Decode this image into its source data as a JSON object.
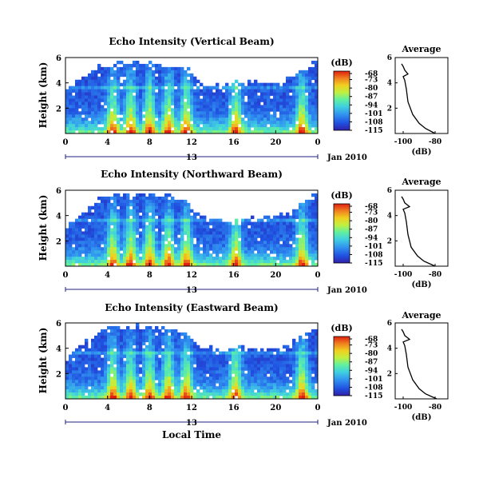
{
  "figure": {
    "colorbar_unit": "(dB)",
    "colorbar_ticks": [
      "-68",
      "-73",
      "-80",
      "-87",
      "-94",
      "-101",
      "-108",
      "-115"
    ],
    "colorbar_range": [
      -115,
      -66
    ],
    "colorscale": [
      "#3020a8",
      "#2050e0",
      "#3090f0",
      "#40d0e0",
      "#60f0a0",
      "#c0f040",
      "#f0d020",
      "#f08020",
      "#e02010"
    ],
    "x_ticks": [
      "0",
      "4",
      "8",
      "12",
      "16",
      "20",
      "0"
    ],
    "date_marker": "13",
    "date_label": "Jan 2010",
    "y_ticks": [
      "6",
      "4",
      "2"
    ],
    "ylabel": "Height (km)",
    "xlabel": "Local Time",
    "avg_title": "Average",
    "avg_xticks": [
      "-100",
      "-80"
    ],
    "avg_yticks": [
      "6",
      "4",
      "2"
    ],
    "avg_xlabel": "(dB)"
  },
  "chart_data": [
    {
      "type": "heatmap",
      "title": "Echo Intensity (Vertical Beam)",
      "x_range_hours": [
        0,
        24
      ],
      "y_range_km": [
        0,
        6
      ],
      "z_unit": "dB",
      "z_range": [
        -115,
        -66
      ],
      "surges_hour": [
        4.5,
        6.2,
        8.0,
        9.8,
        11.5,
        16.2,
        22.5
      ],
      "top_height_km": [
        3.5,
        5.3,
        5.5,
        5.6,
        5.5,
        5.2,
        4.0,
        3.8,
        4.0,
        4.0,
        4.2,
        5.8
      ],
      "top_height_hours": [
        0,
        3.5,
        5,
        7,
        9,
        11.5,
        12.5,
        15,
        17,
        19,
        21,
        24
      ]
    },
    {
      "type": "line",
      "title": "Average",
      "xlabel": "(dB)",
      "xlim": [
        -105,
        -72
      ],
      "ylim": [
        0,
        6
      ],
      "x": [
        -80,
        -86,
        -90,
        -94,
        -97,
        -98,
        -99,
        -100,
        -97,
        -99,
        -100,
        -101
      ],
      "y": [
        0,
        0.4,
        0.8,
        1.5,
        2.5,
        3.5,
        4.2,
        4.5,
        4.7,
        5.0,
        5.3,
        5.5
      ]
    },
    {
      "type": "heatmap",
      "title": "Echo Intensity (Northward Beam)",
      "x_range_hours": [
        0,
        24
      ],
      "y_range_km": [
        0,
        6
      ],
      "z_unit": "dB",
      "z_range": [
        -115,
        -66
      ],
      "surges_hour": [
        4.5,
        6.2,
        8.0,
        9.8,
        11.5,
        16.2,
        22.5
      ],
      "top_height_km": [
        3.0,
        5.5,
        5.6,
        5.7,
        5.6,
        5.3,
        4.0,
        3.5,
        3.6,
        3.8,
        4.0,
        5.8
      ],
      "top_height_hours": [
        0,
        3.5,
        5,
        7,
        9,
        11.5,
        12.5,
        15,
        17,
        19,
        21,
        24
      ]
    },
    {
      "type": "line",
      "title": "Average",
      "xlabel": "(dB)",
      "xlim": [
        -105,
        -72
      ],
      "ylim": [
        0,
        6
      ],
      "x": [
        -80,
        -87,
        -91,
        -95,
        -97,
        -98,
        -99,
        -100,
        -96,
        -99,
        -100,
        -101
      ],
      "y": [
        0,
        0.4,
        0.8,
        1.5,
        2.5,
        3.5,
        4.2,
        4.5,
        4.7,
        5.0,
        5.3,
        5.5
      ]
    },
    {
      "type": "heatmap",
      "title": "Echo Intensity (Eastward Beam)",
      "x_range_hours": [
        0,
        24
      ],
      "y_range_km": [
        0,
        6
      ],
      "z_unit": "dB",
      "z_range": [
        -115,
        -66
      ],
      "surges_hour": [
        4.5,
        6.2,
        8.0,
        9.8,
        11.5,
        16.2,
        22.5
      ],
      "top_height_km": [
        3.2,
        5.4,
        5.6,
        5.7,
        5.6,
        5.2,
        4.2,
        3.8,
        4.0,
        3.8,
        4.0,
        5.8
      ],
      "top_height_hours": [
        0,
        3.5,
        5,
        7,
        9,
        11.5,
        12.5,
        15,
        17,
        19,
        21,
        24
      ]
    },
    {
      "type": "line",
      "title": "Average",
      "xlabel": "(dB)",
      "xlim": [
        -105,
        -72
      ],
      "ylim": [
        0,
        6
      ],
      "x": [
        -79,
        -86,
        -90,
        -94,
        -97,
        -98,
        -99,
        -100,
        -96,
        -99,
        -100,
        -101
      ],
      "y": [
        0,
        0.4,
        0.8,
        1.5,
        2.5,
        3.5,
        4.2,
        4.5,
        4.7,
        5.0,
        5.3,
        5.5
      ]
    }
  ]
}
